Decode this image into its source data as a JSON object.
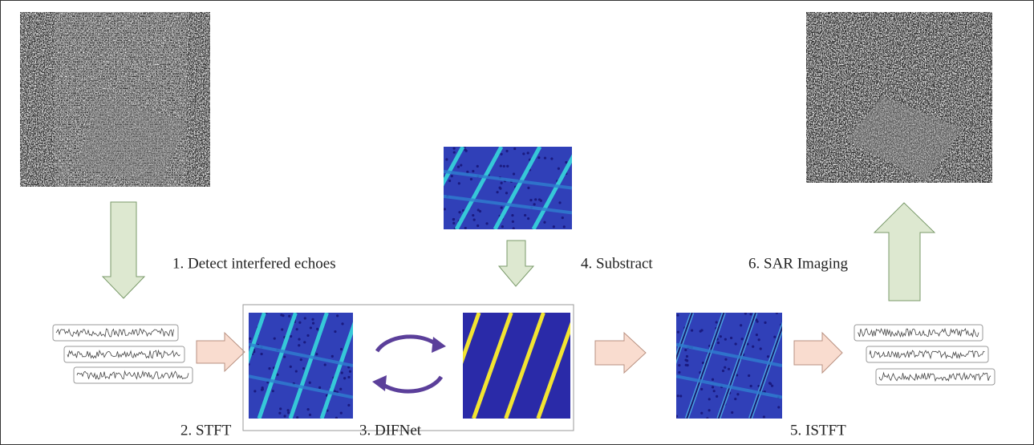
{
  "steps": {
    "detect": "1. Detect interfered echoes",
    "stft": "2. STFT",
    "difnet": "3. DIFNet",
    "subtract": "4. Substract",
    "istft": "5. ISTFT",
    "imaging": "6. SAR Imaging"
  }
}
